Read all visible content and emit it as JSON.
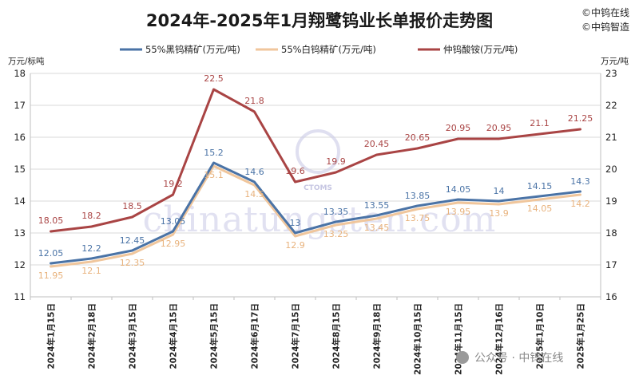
{
  "title": "2024年-2025年1月翔鹭钨业长单报价走势图",
  "brand_lines": [
    "©中钨在线",
    "©中钨智造"
  ],
  "watermark": {
    "text": "chinatungsten.com",
    "logo_text": "CTOMS"
  },
  "wechat_tag": "公众号 · 中钨在线",
  "colors": {
    "series1": "#4a73a6",
    "series2": "#f0c69c",
    "series3": "#a94444",
    "grid": "#d9d9d9"
  },
  "chart_data": {
    "type": "line",
    "title": "2024年-2025年1月翔鹭钨业长单报价走势图",
    "categories": [
      "2024年1月15日",
      "2024年2月18日",
      "2024年3月15日",
      "2024年4月15日",
      "2024年5月15日",
      "2024年6月17日",
      "2024年7月15日",
      "2024年8月15日",
      "2024年9月18日",
      "2024年10月15日",
      "2024年11月15日",
      "2024年12月16日",
      "2025年1月10日",
      "2025年1月25日"
    ],
    "y_left": {
      "label": "万元/标吨",
      "range": [
        11,
        18
      ],
      "ticks": [
        11,
        12,
        13,
        14,
        15,
        16,
        17,
        18
      ]
    },
    "y_right": {
      "label": "万元/吨",
      "range": [
        16,
        23
      ],
      "ticks": [
        16,
        17,
        18,
        19,
        20,
        21,
        22,
        23
      ]
    },
    "grid": true,
    "legend": "top",
    "series": [
      {
        "name": "55%黑钨精矿(万元/吨)",
        "axis": "left",
        "color": "#4a73a6",
        "values": [
          12.05,
          12.2,
          12.45,
          13.05,
          15.2,
          14.6,
          13,
          13.35,
          13.55,
          13.85,
          14.05,
          14,
          14.15,
          14.3
        ],
        "labels": [
          "12.05",
          "12.2",
          "12.45",
          "13.05",
          "15.2",
          "14.6",
          "13",
          "13.35",
          "13.55",
          "13.85",
          "14.05",
          "14",
          "14.15",
          "14.3"
        ]
      },
      {
        "name": "55%白钨精矿(万元/吨)",
        "axis": "left",
        "color": "#f0c69c",
        "values": [
          11.95,
          12.1,
          12.35,
          12.95,
          15.1,
          14.5,
          12.9,
          13.25,
          13.45,
          13.75,
          13.95,
          13.9,
          14.05,
          14.2
        ],
        "labels": [
          "11.95",
          "12.1",
          "12.35",
          "12.95",
          "15.1",
          "14.5",
          "12.9",
          "13.25",
          "13.45",
          "13.75",
          "13.95",
          "13.9",
          "14.05",
          "14.2"
        ]
      },
      {
        "name": "仲钨酸铵(万元/吨)",
        "axis": "right",
        "color": "#a94444",
        "values": [
          18.05,
          18.2,
          18.5,
          19.2,
          22.5,
          21.8,
          19.6,
          19.9,
          20.45,
          20.65,
          20.95,
          20.95,
          21.1,
          21.25
        ],
        "labels": [
          "18.05",
          "18.2",
          "18.5",
          "19.2",
          "22.5",
          "21.8",
          "19.6",
          "19.9",
          "20.45",
          "20.65",
          "20.95",
          "20.95",
          "21.1",
          "21.25"
        ]
      }
    ]
  }
}
